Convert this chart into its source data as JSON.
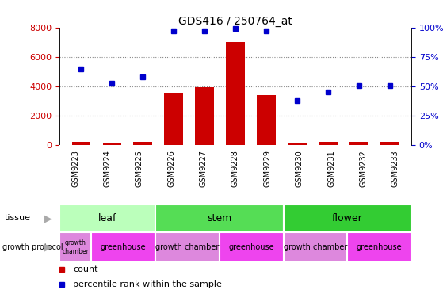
{
  "title": "GDS416 / 250764_at",
  "samples": [
    "GSM9223",
    "GSM9224",
    "GSM9225",
    "GSM9226",
    "GSM9227",
    "GSM9228",
    "GSM9229",
    "GSM9230",
    "GSM9231",
    "GSM9232",
    "GSM9233"
  ],
  "counts": [
    200,
    100,
    200,
    3500,
    3950,
    7050,
    3400,
    100,
    200,
    200,
    200
  ],
  "percentiles": [
    65,
    53,
    58,
    97,
    97,
    99,
    97,
    38,
    45,
    51,
    51
  ],
  "ylim_left": [
    0,
    8000
  ],
  "ylim_right": [
    0,
    100
  ],
  "yticks_left": [
    0,
    2000,
    4000,
    6000,
    8000
  ],
  "yticks_right": [
    0,
    25,
    50,
    75,
    100
  ],
  "bar_color": "#cc0000",
  "dot_color": "#0000cc",
  "tissue_groups": [
    {
      "label": "leaf",
      "start": 0,
      "end": 3,
      "color": "#bbffbb"
    },
    {
      "label": "stem",
      "start": 3,
      "end": 7,
      "color": "#55dd55"
    },
    {
      "label": "flower",
      "start": 7,
      "end": 11,
      "color": "#33cc33"
    }
  ],
  "growth_groups": [
    {
      "label": "growth\nchamber",
      "start": 0,
      "end": 1,
      "color": "#dd88dd"
    },
    {
      "label": "greenhouse",
      "start": 1,
      "end": 3,
      "color": "#ee44ee"
    },
    {
      "label": "growth chamber",
      "start": 3,
      "end": 5,
      "color": "#dd88dd"
    },
    {
      "label": "greenhouse",
      "start": 5,
      "end": 7,
      "color": "#ee44ee"
    },
    {
      "label": "growth chamber",
      "start": 7,
      "end": 9,
      "color": "#dd88dd"
    },
    {
      "label": "greenhouse",
      "start": 9,
      "end": 11,
      "color": "#ee44ee"
    }
  ],
  "legend_count_color": "#cc0000",
  "legend_percentile_color": "#0000cc",
  "left_tick_color": "#cc0000",
  "right_tick_color": "#0000cc",
  "bg_color": "#ffffff",
  "grid_color": "#888888",
  "sample_bg_color": "#cccccc",
  "sample_border_color": "#ffffff"
}
